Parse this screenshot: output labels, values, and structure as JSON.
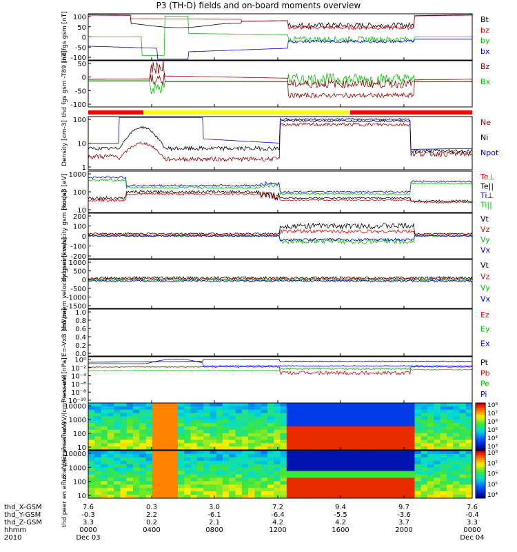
{
  "title": "P3 (TH-D) fields and on-board moments overview",
  "chart_data": [
    {
      "type": "line",
      "ylabel": "thd fgs gsm [nT]",
      "ylim": [
        -100,
        100
      ],
      "yticks": [
        "100",
        "50",
        "0",
        "-50",
        "-100"
      ],
      "legend": [
        {
          "name": "Bt",
          "color": "#000000"
        },
        {
          "name": "bz",
          "color": "#e00000"
        },
        {
          "name": "by",
          "color": "#00c000"
        },
        {
          "name": "bx",
          "color": "#0000e0"
        }
      ]
    },
    {
      "type": "line",
      "ylabel": "thd fgs gsm -T89 [nT]",
      "ylim": [
        -120,
        70
      ],
      "yticks": [
        "50",
        "0",
        "-50",
        "-100"
      ],
      "legend": [
        {
          "name": "Bz",
          "color": "#8b0000"
        },
        {
          "name": "Bx",
          "color": "#00c000"
        }
      ]
    },
    {
      "type": "line",
      "ylabel": "Density [cm-3]",
      "scale": "log",
      "yticks": [
        "100",
        "10",
        "1"
      ],
      "legend": [
        {
          "name": "Ne",
          "color": "#8b0000"
        },
        {
          "name": "Ni",
          "color": "#000000"
        },
        {
          "name": "Npot",
          "color": "#0000e0"
        }
      ]
    },
    {
      "type": "line",
      "ylabel": "moqa3 [eV]",
      "scale": "log",
      "yticks": [
        "1000",
        "100",
        "10"
      ],
      "legend": [
        {
          "name": "Te⊥",
          "color": "#e00000"
        },
        {
          "name": "Te||",
          "color": "#000000"
        },
        {
          "name": "Ti⊥",
          "color": "#0000e0"
        },
        {
          "name": "Ti||",
          "color": "#00c000"
        }
      ]
    },
    {
      "type": "line",
      "ylabel": "thd peim velocity gsm [km/s]",
      "ylim": [
        -200,
        200
      ],
      "yticks": [
        "200",
        "100",
        "0",
        "-100",
        "-200"
      ],
      "legend": [
        {
          "name": "Vt",
          "color": "#000000"
        },
        {
          "name": "Vz",
          "color": "#e00000"
        },
        {
          "name": "Vy",
          "color": "#00c000"
        },
        {
          "name": "Vx",
          "color": "#0000e0"
        }
      ]
    },
    {
      "type": "line",
      "ylabel": "thd peem velocity gsm [km/s]",
      "ylim": [
        -1500,
        1000
      ],
      "yticks": [
        "1000",
        "500",
        "0",
        "-500",
        "-1000",
        "-1500"
      ],
      "legend": [
        {
          "name": "Vt",
          "color": "#000000"
        },
        {
          "name": "Vz",
          "color": "#e00000"
        },
        {
          "name": "Vy",
          "color": "#00c000"
        },
        {
          "name": "Vx",
          "color": "#0000e0"
        }
      ]
    },
    {
      "type": "line",
      "ylabel": "E=-VxB [mV/m]",
      "ylim": [
        0,
        1.0
      ],
      "yticks": [
        "1.0",
        "0.8",
        "0.6",
        "0.4",
        "0.2",
        "0.0"
      ],
      "legend": [
        {
          "name": "Ez",
          "color": "#e00000"
        },
        {
          "name": "Ey",
          "color": "#00c000"
        },
        {
          "name": "Ex",
          "color": "#0000e0"
        }
      ]
    },
    {
      "type": "line",
      "ylabel": "Pressure [nPa]",
      "scale": "log",
      "yticks": [
        "10⁰",
        "10⁻²",
        "10⁻⁴",
        "10⁻⁶",
        "10⁻⁸",
        "10⁻¹⁰"
      ],
      "legend": [
        {
          "name": "Pt",
          "color": "#000000"
        },
        {
          "name": "Pb",
          "color": "#e00000"
        },
        {
          "name": "Pe",
          "color": "#00c000"
        },
        {
          "name": "Pi",
          "color": "#0000e0"
        }
      ]
    },
    {
      "type": "heatmap",
      "ylabel": "thd peir en eflux eV/(cm²-s-sr-eV)",
      "scale": "log",
      "yticks": [
        "10000",
        "1000",
        "100",
        "10"
      ],
      "colorbar": [
        "10⁸",
        "10⁷",
        "10⁶",
        "10⁵",
        "10⁴",
        "10³"
      ]
    },
    {
      "type": "heatmap",
      "ylabel": "thd peer en eflux eV/(cm²-s-sr-eV)",
      "scale": "log",
      "yticks": [
        "10000",
        "1000",
        "100",
        "10"
      ],
      "colorbar": [
        "10⁸",
        "10⁷",
        "10⁶",
        "10⁵",
        "10⁴"
      ]
    }
  ],
  "xaxis": {
    "rows": [
      {
        "label": "thd_X-GSM",
        "values": [
          "7.6",
          "0.3",
          "3.0",
          "7.2",
          "9.4",
          "9.7",
          "7.6"
        ]
      },
      {
        "label": "thd_Y-GSM",
        "values": [
          "-0.3",
          "2.2",
          "-6.1",
          "-6.4",
          "-5.5",
          "-3.6",
          "-0.4"
        ]
      },
      {
        "label": "thd_Z-GSM",
        "values": [
          "3.3",
          "0.2",
          "2.1",
          "4.2",
          "4.2",
          "3.7",
          "3.3"
        ]
      },
      {
        "label": "hhmm",
        "values": [
          "0000",
          "0400",
          "0800",
          "1200",
          "1600",
          "2000",
          "0000"
        ]
      },
      {
        "label": "2010",
        "values": [
          "Dec 03",
          "",
          "",
          "",
          "",
          "",
          "Dec 04"
        ]
      }
    ]
  }
}
